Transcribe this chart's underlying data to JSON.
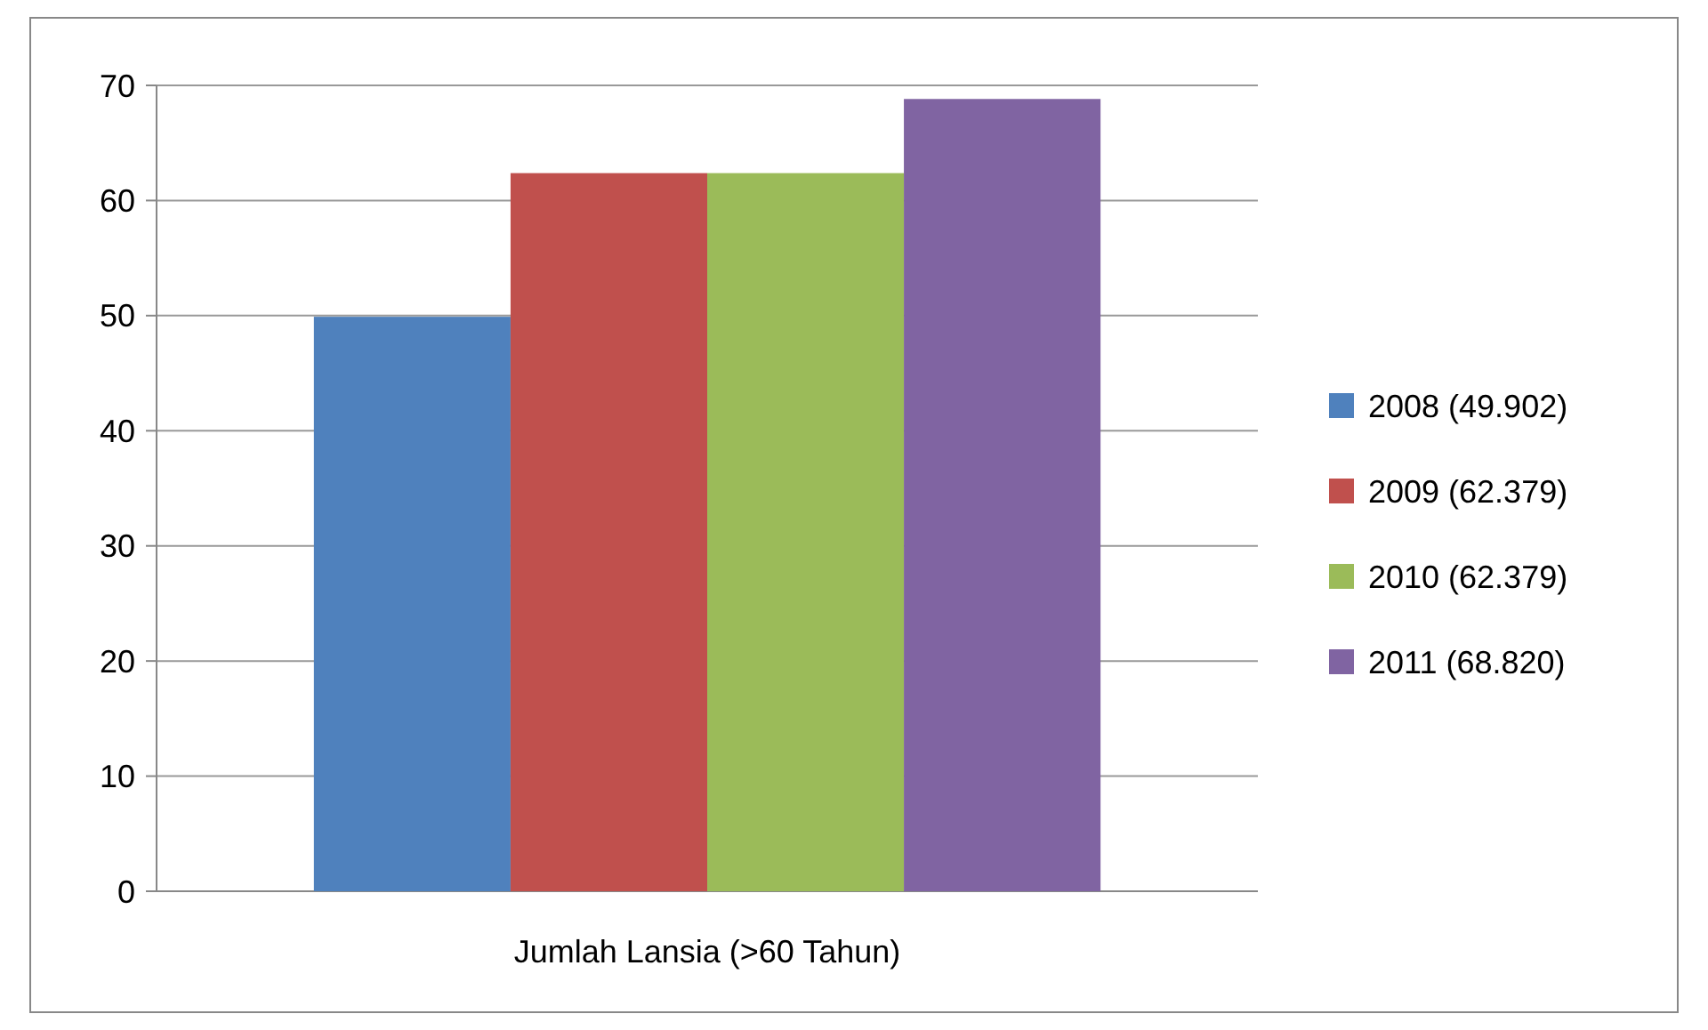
{
  "chart_data": {
    "type": "bar",
    "categories": [
      "Jumlah Lansia (>60 Tahun)"
    ],
    "series": [
      {
        "name": "2008 (49.902)",
        "color": "#4f81bd",
        "values": [
          49.902
        ]
      },
      {
        "name": "2009 (62.379)",
        "color": "#c0504d",
        "values": [
          62.379
        ]
      },
      {
        "name": "2010 (62.379)",
        "color": "#9bbb59",
        "values": [
          62.379
        ]
      },
      {
        "name": "2011 (68.820)",
        "color": "#8064a2",
        "values": [
          68.82
        ]
      }
    ],
    "ylim": [
      0,
      70
    ],
    "yticks": [
      0,
      10,
      20,
      30,
      40,
      50,
      60,
      70
    ],
    "grid": "y",
    "legend": "right"
  }
}
